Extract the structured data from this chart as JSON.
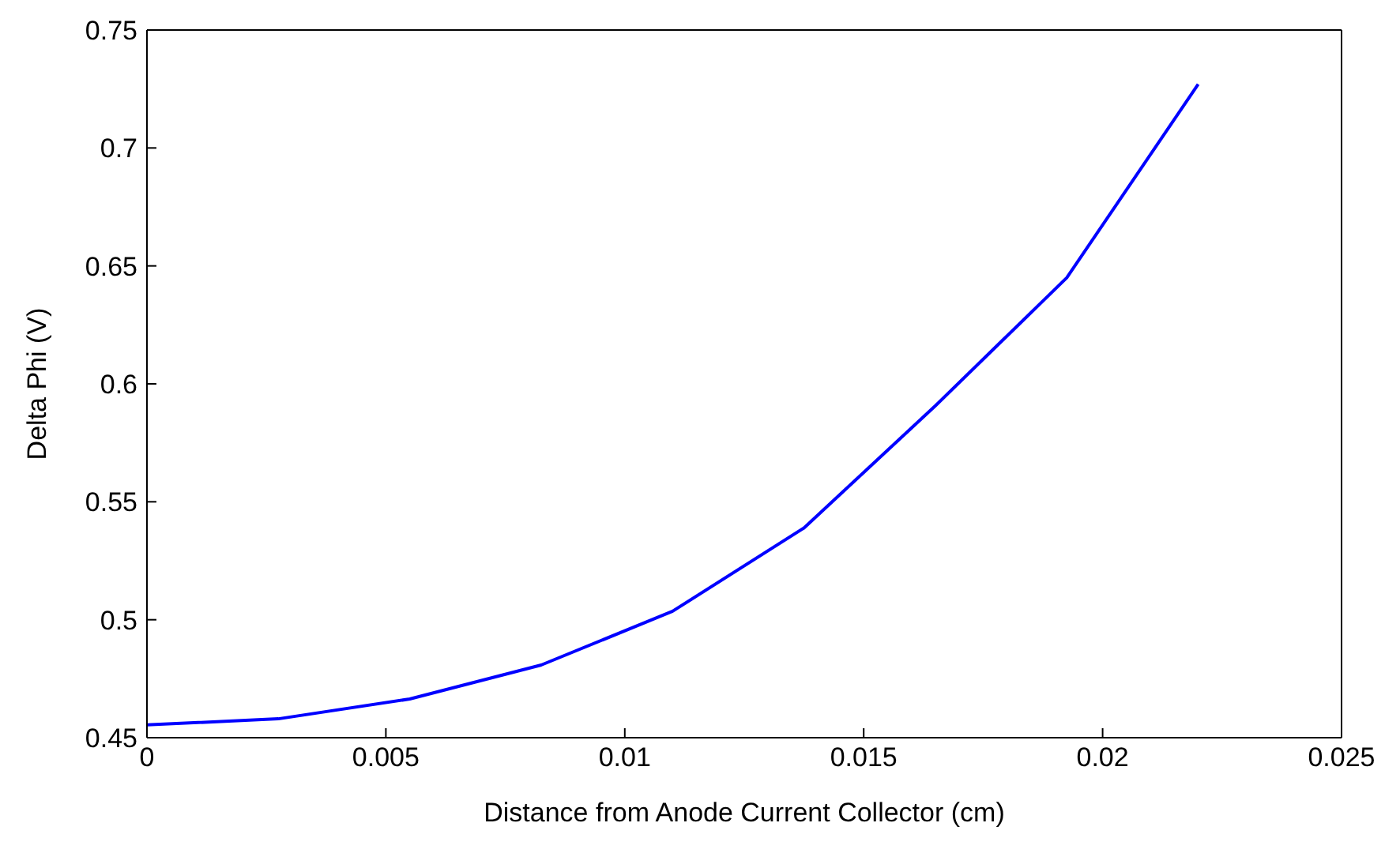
{
  "chart_data": {
    "type": "line",
    "xlabel": "Distance from Anode Current Collector (cm)",
    "ylabel": "Delta Phi (V)",
    "x": [
      0,
      0.00275,
      0.0055,
      0.00825,
      0.011,
      0.01375,
      0.0165,
      0.01925,
      0.022
    ],
    "series": [
      {
        "color": "#0000ff",
        "values": [
          0.4554,
          0.458,
          0.4664,
          0.4808,
          0.5036,
          0.5389,
          0.5907,
          0.645,
          0.727
        ]
      }
    ],
    "xlim": [
      0,
      0.025
    ],
    "xticks": [
      0,
      0.005,
      0.01,
      0.015,
      0.02,
      0.025
    ],
    "ylim": [
      0.45,
      0.75
    ],
    "yticks": [
      0.45,
      0.5,
      0.55,
      0.6,
      0.65,
      0.7,
      0.75
    ],
    "grid": false,
    "legend": false,
    "marker": "none",
    "line_style": "solid"
  }
}
